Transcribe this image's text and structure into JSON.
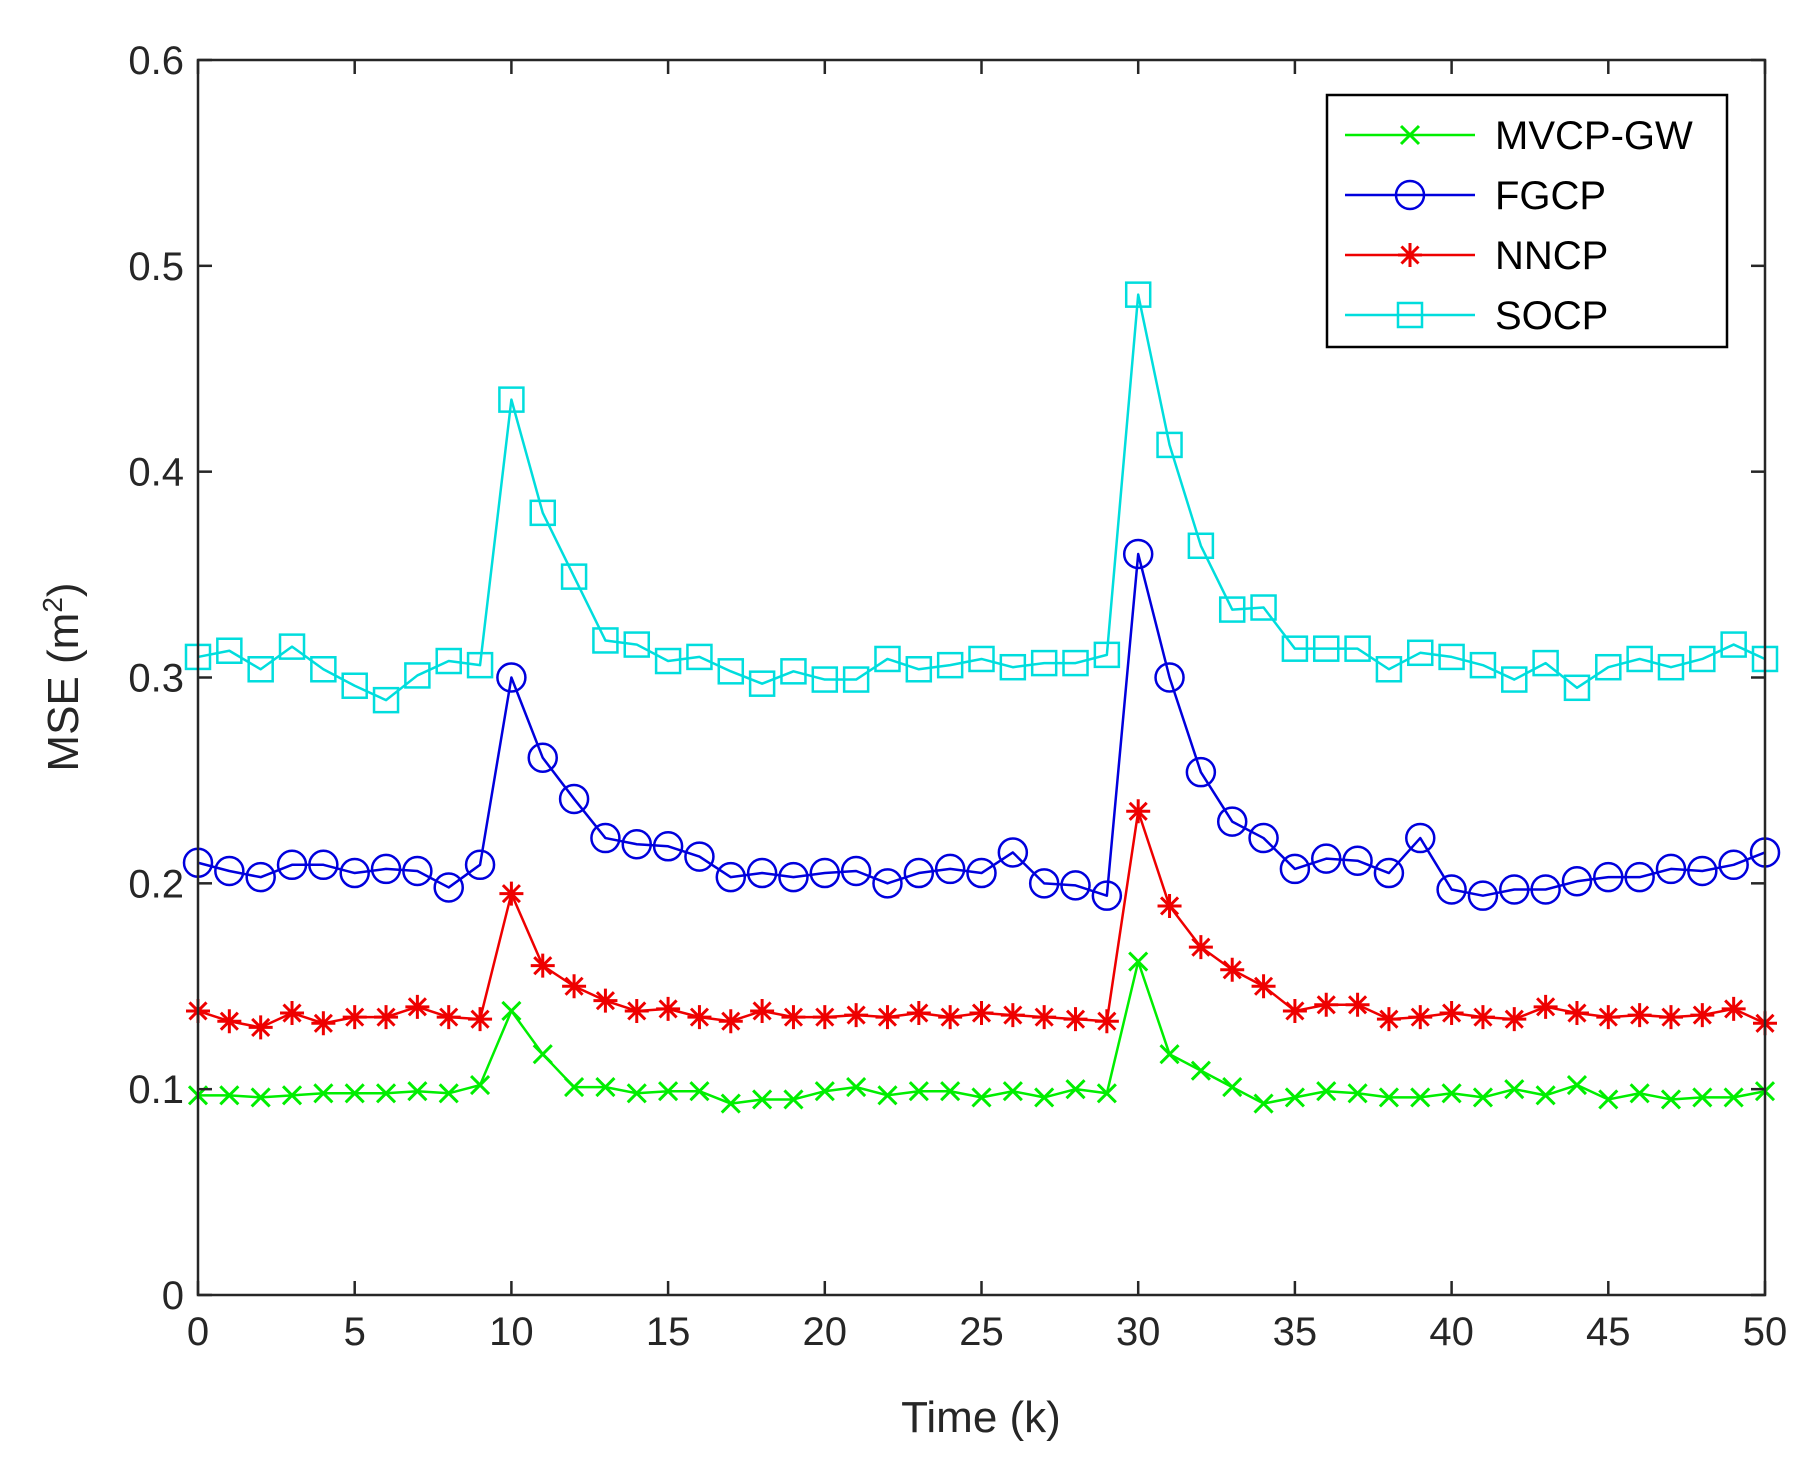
{
  "chart_data": {
    "type": "line",
    "title": "",
    "xlabel": "Time (k)",
    "ylabel_base": "MSE (m",
    "ylabel_sup": "2",
    "ylabel_end": ")",
    "xlim": [
      0,
      50
    ],
    "ylim": [
      0,
      0.6
    ],
    "xticks": [
      0,
      5,
      10,
      15,
      20,
      25,
      30,
      35,
      40,
      45,
      50
    ],
    "xtick_labels": [
      "0",
      "5",
      "10",
      "15",
      "20",
      "25",
      "30",
      "35",
      "40",
      "45",
      "50"
    ],
    "yticks": [
      0,
      0.1,
      0.2,
      0.3,
      0.4,
      0.5,
      0.6
    ],
    "ytick_labels": [
      "0",
      "0.1",
      "0.2",
      "0.3",
      "0.4",
      "0.5",
      "0.6"
    ],
    "grid": false,
    "legend_position": "top-right",
    "x": [
      0,
      1,
      2,
      3,
      4,
      5,
      6,
      7,
      8,
      9,
      10,
      11,
      12,
      13,
      14,
      15,
      16,
      17,
      18,
      19,
      20,
      21,
      22,
      23,
      24,
      25,
      26,
      27,
      28,
      29,
      30,
      31,
      32,
      33,
      34,
      35,
      36,
      37,
      38,
      39,
      40,
      41,
      42,
      43,
      44,
      45,
      46,
      47,
      48,
      49,
      50
    ],
    "series": [
      {
        "name": "MVCP-GW",
        "color": "#00ee00",
        "marker": "x",
        "values": [
          0.097,
          0.097,
          0.096,
          0.097,
          0.098,
          0.098,
          0.098,
          0.099,
          0.098,
          0.102,
          0.138,
          0.117,
          0.101,
          0.101,
          0.098,
          0.099,
          0.099,
          0.093,
          0.095,
          0.095,
          0.099,
          0.101,
          0.097,
          0.099,
          0.099,
          0.096,
          0.099,
          0.096,
          0.1,
          0.098,
          0.162,
          0.117,
          0.109,
          0.101,
          0.093,
          0.096,
          0.099,
          0.098,
          0.096,
          0.096,
          0.098,
          0.096,
          0.1,
          0.097,
          0.102,
          0.095,
          0.098,
          0.095,
          0.096,
          0.096,
          0.099
        ]
      },
      {
        "name": "FGCP",
        "color": "#0000dd",
        "marker": "o",
        "values": [
          0.21,
          0.206,
          0.203,
          0.209,
          0.209,
          0.205,
          0.207,
          0.206,
          0.198,
          0.209,
          0.3,
          0.261,
          0.241,
          0.222,
          0.219,
          0.218,
          0.213,
          0.203,
          0.205,
          0.203,
          0.205,
          0.206,
          0.2,
          0.205,
          0.207,
          0.205,
          0.215,
          0.2,
          0.199,
          0.194,
          0.36,
          0.3,
          0.254,
          0.23,
          0.222,
          0.207,
          0.212,
          0.211,
          0.205,
          0.222,
          0.197,
          0.194,
          0.197,
          0.197,
          0.201,
          0.203,
          0.203,
          0.207,
          0.206,
          0.209,
          0.215
        ]
      },
      {
        "name": "NNCP",
        "color": "#ee0000",
        "marker": "*",
        "values": [
          0.138,
          0.133,
          0.13,
          0.137,
          0.132,
          0.135,
          0.135,
          0.14,
          0.135,
          0.134,
          0.195,
          0.16,
          0.15,
          0.143,
          0.138,
          0.139,
          0.135,
          0.133,
          0.138,
          0.135,
          0.135,
          0.136,
          0.135,
          0.137,
          0.135,
          0.137,
          0.136,
          0.135,
          0.134,
          0.133,
          0.235,
          0.189,
          0.169,
          0.158,
          0.15,
          0.138,
          0.141,
          0.141,
          0.134,
          0.135,
          0.137,
          0.135,
          0.134,
          0.14,
          0.137,
          0.135,
          0.136,
          0.135,
          0.136,
          0.139,
          0.132
        ]
      },
      {
        "name": "SOCP",
        "color": "#00dddd",
        "marker": "s",
        "values": [
          0.31,
          0.313,
          0.304,
          0.315,
          0.304,
          0.296,
          0.289,
          0.301,
          0.308,
          0.306,
          0.435,
          0.38,
          0.349,
          0.318,
          0.316,
          0.308,
          0.31,
          0.303,
          0.297,
          0.303,
          0.299,
          0.299,
          0.309,
          0.304,
          0.306,
          0.309,
          0.305,
          0.307,
          0.307,
          0.311,
          0.486,
          0.413,
          0.364,
          0.333,
          0.334,
          0.314,
          0.314,
          0.314,
          0.304,
          0.312,
          0.31,
          0.306,
          0.299,
          0.307,
          0.295,
          0.305,
          0.309,
          0.305,
          0.309,
          0.316,
          0.309
        ]
      }
    ]
  }
}
